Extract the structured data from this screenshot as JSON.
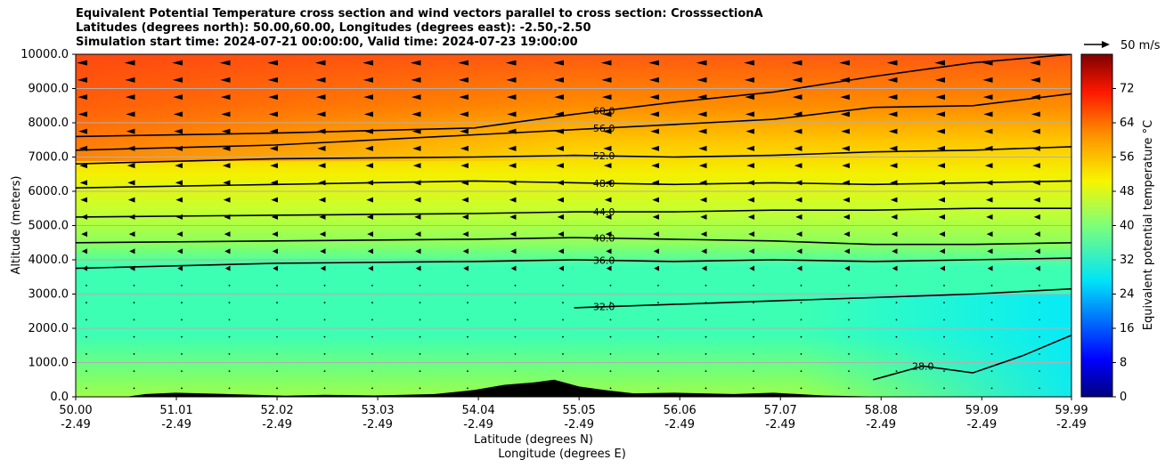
{
  "title_lines": [
    "Equivalent Potential Temperature cross section and wind vectors parallel to cross section: CrosssectionA",
    "Latitudes (degrees north): 50.00,60.00, Longitudes (degrees east): -2.50,-2.50",
    "Simulation start time: 2024-07-21 00:00:00, Valid time: 2024-07-23 19:00:00"
  ],
  "chart_data": {
    "type": "heatmap",
    "subtype": "filled contour cross section with contour lines and wind vectors",
    "ylabel": "Altitude (meters)",
    "xlabel_line1": "Latitude (degrees N)",
    "xlabel_line2": "Longitude (degrees E)",
    "ylim": [
      0,
      10000
    ],
    "xlim": [
      50.0,
      59.99
    ],
    "yticks": [
      "0.0",
      "1000.0",
      "2000.0",
      "3000.0",
      "4000.0",
      "5000.0",
      "6000.0",
      "7000.0",
      "8000.0",
      "9000.0",
      "10000.0"
    ],
    "ytick_values": [
      0,
      1000,
      2000,
      3000,
      4000,
      5000,
      6000,
      7000,
      8000,
      9000,
      10000
    ],
    "xticks": [
      {
        "value": 50.0,
        "lat": "50.00",
        "lon": "-2.49"
      },
      {
        "value": 51.01,
        "lat": "51.01",
        "lon": "-2.49"
      },
      {
        "value": 52.02,
        "lat": "52.02",
        "lon": "-2.49"
      },
      {
        "value": 53.03,
        "lat": "53.03",
        "lon": "-2.49"
      },
      {
        "value": 54.04,
        "lat": "54.04",
        "lon": "-2.49"
      },
      {
        "value": 55.05,
        "lat": "55.05",
        "lon": "-2.49"
      },
      {
        "value": 56.06,
        "lat": "56.06",
        "lon": "-2.49"
      },
      {
        "value": 57.07,
        "lat": "57.07",
        "lon": "-2.49"
      },
      {
        "value": 58.08,
        "lat": "58.08",
        "lon": "-2.49"
      },
      {
        "value": 59.09,
        "lat": "59.09",
        "lon": "-2.49"
      },
      {
        "value": 59.99,
        "lat": "59.99",
        "lon": "-2.49"
      }
    ],
    "grid": "horizontal",
    "colorbar": {
      "label": "Equivalent potential temperature °C",
      "range": [
        0,
        80
      ],
      "ticks": [
        "0",
        "8",
        "16",
        "24",
        "32",
        "40",
        "48",
        "56",
        "64",
        "72"
      ],
      "tick_values": [
        0,
        8,
        16,
        24,
        32,
        40,
        48,
        56,
        64,
        72
      ],
      "colormap": "jet"
    },
    "quiver_key": "50 m/s",
    "contour_levels": [
      {
        "value": 60,
        "label": "60.0",
        "heights": [
          [
            50.0,
            7600
          ],
          [
            52.0,
            7700
          ],
          [
            54.0,
            7850
          ],
          [
            55.0,
            8250
          ],
          [
            56.0,
            8600
          ],
          [
            57.0,
            8900
          ],
          [
            58.0,
            9350
          ],
          [
            59.0,
            9750
          ],
          [
            59.99,
            10000
          ]
        ]
      },
      {
        "value": 56,
        "label": "56.0",
        "heights": [
          [
            50.0,
            7200
          ],
          [
            52.0,
            7350
          ],
          [
            54.0,
            7650
          ],
          [
            55.0,
            7800
          ],
          [
            56.0,
            7950
          ],
          [
            57.0,
            8100
          ],
          [
            58.0,
            8450
          ],
          [
            59.0,
            8500
          ],
          [
            59.99,
            8850
          ]
        ]
      },
      {
        "value": 52,
        "label": "52.0",
        "heights": [
          [
            50.0,
            6800
          ],
          [
            52.0,
            6950
          ],
          [
            54.0,
            7000
          ],
          [
            55.0,
            7050
          ],
          [
            56.0,
            7000
          ],
          [
            57.0,
            7050
          ],
          [
            58.0,
            7150
          ],
          [
            59.0,
            7200
          ],
          [
            59.99,
            7300
          ]
        ]
      },
      {
        "value": 48,
        "label": "48.0",
        "heights": [
          [
            50.0,
            6100
          ],
          [
            52.0,
            6200
          ],
          [
            54.0,
            6300
          ],
          [
            55.0,
            6250
          ],
          [
            56.0,
            6200
          ],
          [
            57.0,
            6250
          ],
          [
            58.0,
            6200
          ],
          [
            59.0,
            6250
          ],
          [
            59.99,
            6300
          ]
        ]
      },
      {
        "value": 44,
        "label": "44.0",
        "heights": [
          [
            50.0,
            5250
          ],
          [
            52.0,
            5300
          ],
          [
            54.0,
            5350
          ],
          [
            55.0,
            5400
          ],
          [
            56.0,
            5400
          ],
          [
            57.0,
            5450
          ],
          [
            58.0,
            5450
          ],
          [
            59.0,
            5500
          ],
          [
            59.99,
            5500
          ]
        ]
      },
      {
        "value": 40,
        "label": "40.0",
        "heights": [
          [
            50.0,
            4500
          ],
          [
            52.0,
            4550
          ],
          [
            54.0,
            4600
          ],
          [
            55.0,
            4650
          ],
          [
            56.0,
            4600
          ],
          [
            57.0,
            4550
          ],
          [
            58.0,
            4450
          ],
          [
            59.0,
            4450
          ],
          [
            59.99,
            4500
          ]
        ]
      },
      {
        "value": 36,
        "label": "36.0",
        "heights": [
          [
            50.0,
            3750
          ],
          [
            52.0,
            3900
          ],
          [
            54.0,
            3950
          ],
          [
            55.0,
            4000
          ],
          [
            56.0,
            3950
          ],
          [
            57.0,
            4000
          ],
          [
            58.0,
            3950
          ],
          [
            59.0,
            4000
          ],
          [
            59.99,
            4050
          ]
        ]
      },
      {
        "value": 32,
        "label": "32.0",
        "heights": [
          [
            55.0,
            2600
          ],
          [
            56.0,
            2700
          ],
          [
            57.0,
            2800
          ],
          [
            58.0,
            2900
          ],
          [
            59.0,
            3000
          ],
          [
            59.99,
            3150
          ]
        ]
      },
      {
        "value": 28,
        "label": "28.0",
        "heights": [
          [
            58.0,
            500
          ],
          [
            58.5,
            900
          ],
          [
            59.0,
            700
          ],
          [
            59.5,
            1200
          ],
          [
            59.99,
            1800
          ]
        ]
      }
    ],
    "terrain": "black orography along the surface, highest near 54.5–55.2 °N (~500 m)"
  }
}
